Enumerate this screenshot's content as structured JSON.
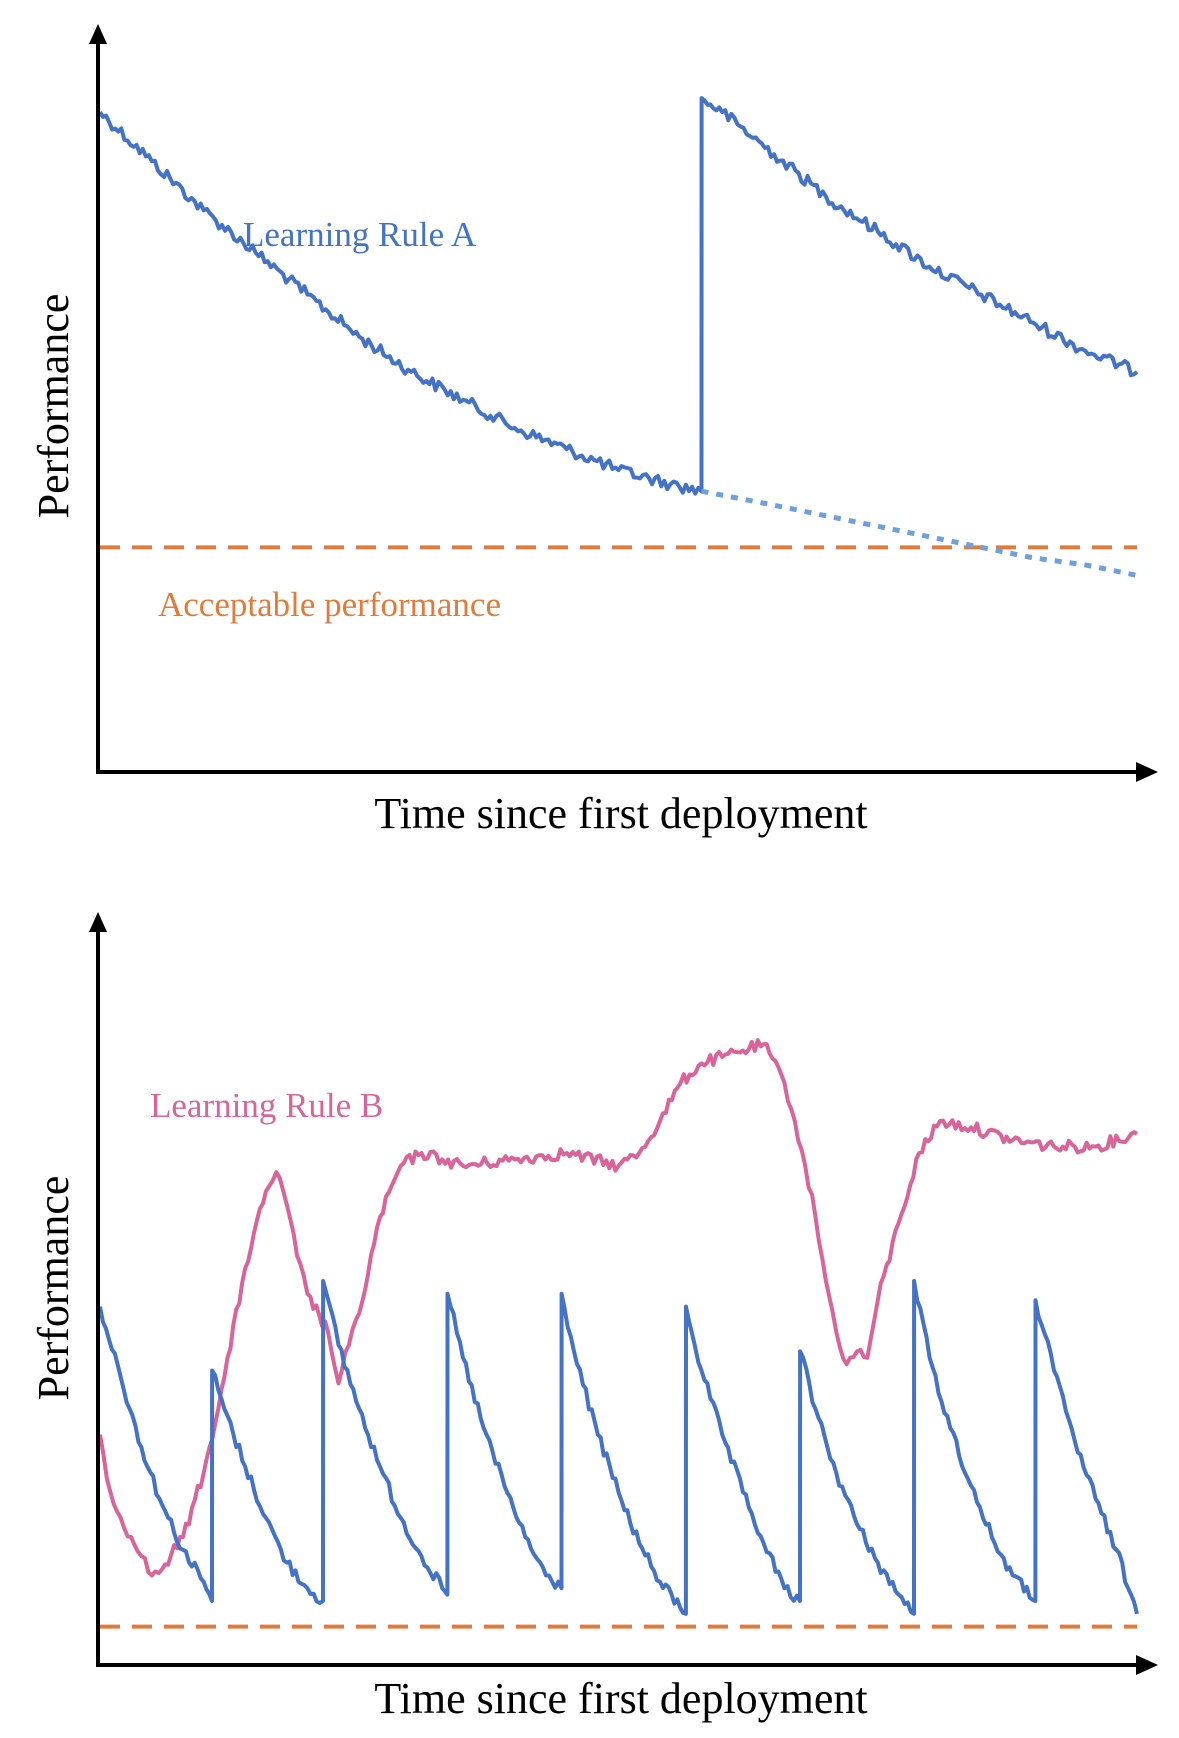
{
  "chart_data": [
    {
      "type": "line",
      "xlabel": "Time since first deployment",
      "ylabel": "Performance",
      "xlim": [
        0,
        100
      ],
      "ylim": [
        0,
        100
      ],
      "threshold": {
        "name": "Acceptable performance",
        "value": 32,
        "color": "#E07B39",
        "style": "dashed"
      },
      "series": [
        {
          "name": "Learning Rule A",
          "color": "#4472C4",
          "style": "solid",
          "x": [
            0,
            5,
            10,
            15,
            20,
            25,
            30,
            35,
            40,
            45,
            50,
            55,
            58,
            58.01,
            60,
            65,
            70,
            75,
            80,
            85,
            90,
            95,
            100
          ],
          "values": [
            94,
            87,
            80,
            74,
            68,
            62,
            57,
            53,
            49,
            46,
            43,
            41,
            40,
            96,
            94,
            88,
            82,
            77,
            72,
            68,
            64,
            60,
            57
          ]
        },
        {
          "name": "",
          "color": "#6FA0DC",
          "style": "dotted",
          "x": [
            58,
            65,
            70,
            75,
            80,
            85,
            90,
            95,
            100
          ],
          "values": [
            40,
            38,
            36.5,
            35,
            33.5,
            32,
            30.5,
            29.5,
            28
          ]
        }
      ]
    },
    {
      "type": "line",
      "xlabel": "Time since first deployment",
      "ylabel": "Performance",
      "xlim": [
        0,
        100
      ],
      "ylim": [
        0,
        100
      ],
      "threshold": {
        "name": "",
        "value": 6,
        "color": "#E07B39",
        "style": "dashed"
      },
      "series": [
        {
          "name": "Learning Rule B",
          "color": "#D9649A",
          "style": "solid",
          "x": [
            0,
            1,
            2,
            3,
            4,
            5,
            6,
            8,
            10,
            12,
            14,
            16,
            17,
            18,
            19,
            20,
            22,
            23,
            24,
            25,
            27,
            29,
            31,
            33,
            35,
            40,
            45,
            50,
            52,
            54,
            56,
            58,
            60,
            62,
            64,
            66,
            67,
            68,
            69,
            70,
            71,
            72,
            73,
            74,
            75,
            77,
            79,
            81,
            84,
            88,
            92,
            96,
            100
          ],
          "values": [
            36,
            27,
            23,
            20,
            17,
            14,
            15,
            20,
            30,
            45,
            62,
            74,
            77,
            72,
            64,
            58,
            52,
            44,
            50,
            55,
            70,
            78,
            80,
            79,
            78,
            79,
            80,
            78,
            80,
            85,
            91,
            94,
            95,
            96,
            97,
            91,
            85,
            78,
            70,
            60,
            52,
            47,
            49,
            48,
            57,
            69,
            80,
            85,
            84,
            82,
            81,
            81,
            83
          ]
        },
        {
          "name": "",
          "color": "#4472C4",
          "style": "solid",
          "x": [
            0,
            2,
            4,
            6,
            8,
            10,
            10.8,
            10.81,
            12,
            14,
            16,
            18,
            20,
            21.5,
            21.51,
            23,
            25,
            27,
            29,
            31,
            33,
            33.5,
            33.51,
            35,
            37,
            39,
            41,
            43,
            44.5,
            44.51,
            46,
            48,
            50,
            52,
            54,
            56.5,
            56.51,
            58,
            60,
            62,
            64,
            66,
            67.5,
            67.51,
            69,
            71,
            73,
            75,
            77,
            78.5,
            78.51,
            80,
            82,
            84,
            86,
            88,
            90.2,
            90.21,
            92,
            94,
            96,
            98,
            100
          ],
          "values": [
            56,
            45,
            34,
            25,
            18,
            13,
            10,
            46,
            40,
            31,
            23,
            16,
            12,
            10,
            60,
            50,
            40,
            31,
            23,
            17,
            12,
            11,
            58,
            48,
            37,
            28,
            20,
            14,
            12,
            58,
            47,
            36,
            27,
            19,
            13,
            8,
            56,
            46,
            36,
            27,
            19,
            12,
            10,
            49,
            40,
            30,
            22,
            16,
            11,
            8,
            60,
            48,
            37,
            28,
            20,
            14,
            10,
            57,
            46,
            35,
            26,
            18,
            8
          ]
        }
      ]
    }
  ]
}
